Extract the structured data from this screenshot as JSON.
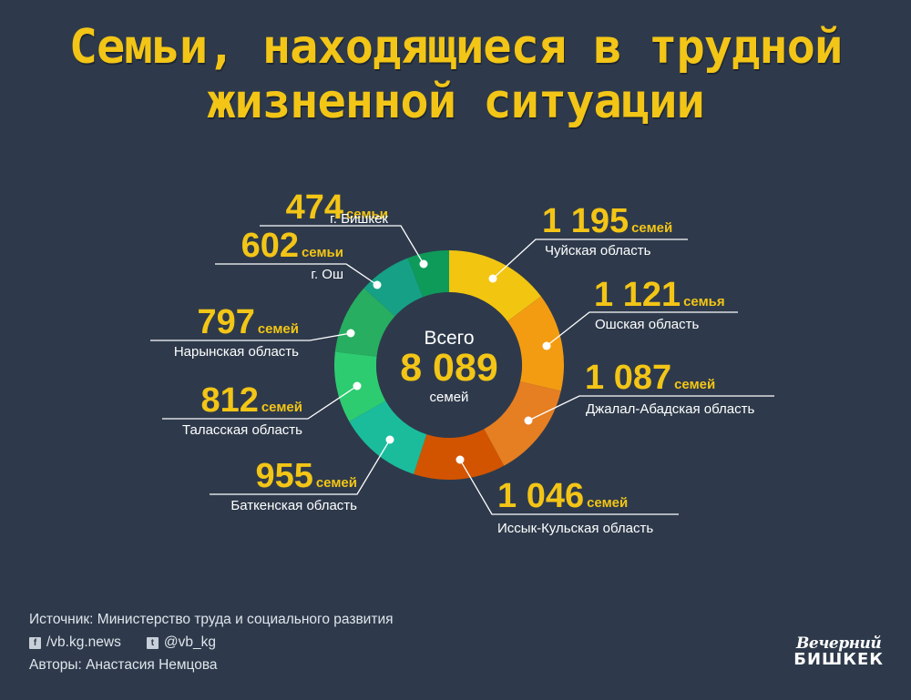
{
  "title": {
    "line1": "Семьи, находящиеся в трудной",
    "line2": "жизненной ситуации"
  },
  "center": {
    "label": "Всего",
    "total": "8 089",
    "unit": "семей"
  },
  "chart_data": {
    "type": "pie",
    "title": "Семьи, находящиеся в трудной жизненной ситуации",
    "total": 8089,
    "slices": [
      {
        "region": "Чуйская область",
        "value": 1195,
        "value_label": "1 195",
        "unit": "семей",
        "color": "#f2c511"
      },
      {
        "region": "Ошская область",
        "value": 1121,
        "value_label": "1 121",
        "unit": "семья",
        "color": "#f39c12"
      },
      {
        "region": "Джалал-Абадская область",
        "value": 1087,
        "value_label": "1 087",
        "unit": "семей",
        "color": "#e67e22"
      },
      {
        "region": "Иссык-Кульская область",
        "value": 1046,
        "value_label": "1 046",
        "unit": "семей",
        "color": "#d35400"
      },
      {
        "region": "Баткенская область",
        "value": 955,
        "value_label": "955",
        "unit": "семей",
        "color": "#1abc9c"
      },
      {
        "region": "Таласская область",
        "value": 812,
        "value_label": "812",
        "unit": "семей",
        "color": "#2ecc71"
      },
      {
        "region": "Нарынская область",
        "value": 797,
        "value_label": "797",
        "unit": "семей",
        "color": "#27ae60"
      },
      {
        "region": "г. Ош",
        "value": 602,
        "value_label": "602",
        "unit": "семьи",
        "color": "#16a085"
      },
      {
        "region": "г. Бишкек",
        "value": 474,
        "value_label": "474",
        "unit": "семьи",
        "color": "#0e9b5a"
      }
    ]
  },
  "footer": {
    "source": "Источник: Министерство труда и социального развития",
    "facebook_icon": "facebook-icon",
    "facebook": "/vb.kg.news",
    "twitter_icon": "twitter-icon",
    "twitter": "@vb_kg",
    "authors": "Авторы: Анастасия Немцова"
  },
  "logo": {
    "line1": "Вечерний",
    "line2": "БИШКЕК"
  }
}
